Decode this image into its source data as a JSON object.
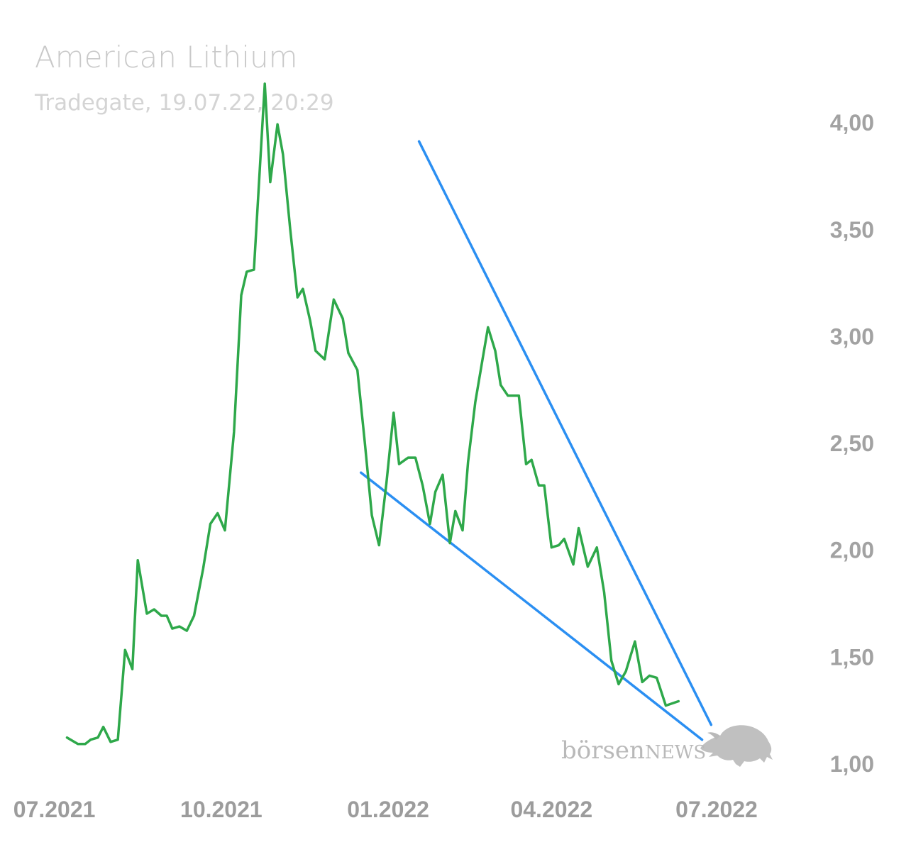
{
  "chart_data": {
    "type": "line",
    "title": "American Lithium",
    "subtitle": "Tradegate, 19.07.22, 20:29",
    "xlabel": "",
    "ylabel": "",
    "ylim": [
      0.9,
      4.19
    ],
    "xlim": [
      "2021-06-12",
      "2022-08-31"
    ],
    "yticks": [
      {
        "value": 4.0,
        "label": "4,00"
      },
      {
        "value": 3.5,
        "label": "3,50"
      },
      {
        "value": 3.0,
        "label": "3,00"
      },
      {
        "value": 2.5,
        "label": "2,50"
      },
      {
        "value": 2.0,
        "label": "2,00"
      },
      {
        "value": 1.5,
        "label": "1,50"
      },
      {
        "value": 1.0,
        "label": "1,00"
      }
    ],
    "xticks": [
      {
        "date": "2021-07-01",
        "label": "07.2021"
      },
      {
        "date": "2021-10-01",
        "label": "10.2021"
      },
      {
        "date": "2022-01-01",
        "label": "01.2022"
      },
      {
        "date": "2022-04-01",
        "label": "04.2022"
      },
      {
        "date": "2022-07-01",
        "label": "07.2022"
      }
    ],
    "grid": false,
    "series": [
      {
        "name": "",
        "color": "#2ea84a",
        "points": [
          [
            "2021-07-08",
            1.12
          ],
          [
            "2021-07-14",
            1.09
          ],
          [
            "2021-07-18",
            1.09
          ],
          [
            "2021-07-21",
            1.11
          ],
          [
            "2021-07-25",
            1.12
          ],
          [
            "2021-07-28",
            1.17
          ],
          [
            "2021-08-01",
            1.1
          ],
          [
            "2021-08-05",
            1.11
          ],
          [
            "2021-08-09",
            1.53
          ],
          [
            "2021-08-13",
            1.44
          ],
          [
            "2021-08-16",
            1.95
          ],
          [
            "2021-08-21",
            1.7
          ],
          [
            "2021-08-25",
            1.72
          ],
          [
            "2021-08-29",
            1.69
          ],
          [
            "2021-09-01",
            1.69
          ],
          [
            "2021-09-04",
            1.63
          ],
          [
            "2021-09-08",
            1.64
          ],
          [
            "2021-09-12",
            1.62
          ],
          [
            "2021-09-16",
            1.69
          ],
          [
            "2021-09-21",
            1.91
          ],
          [
            "2021-09-25",
            2.12
          ],
          [
            "2021-09-29",
            2.17
          ],
          [
            "2021-10-03",
            2.09
          ],
          [
            "2021-10-08",
            2.55
          ],
          [
            "2021-10-12",
            3.19
          ],
          [
            "2021-10-15",
            3.3
          ],
          [
            "2021-10-19",
            3.31
          ],
          [
            "2021-10-25",
            4.18
          ],
          [
            "2021-10-28",
            3.72
          ],
          [
            "2021-11-01",
            3.99
          ],
          [
            "2021-11-04",
            3.85
          ],
          [
            "2021-11-08",
            3.5
          ],
          [
            "2021-11-12",
            3.18
          ],
          [
            "2021-11-15",
            3.22
          ],
          [
            "2021-11-19",
            3.07
          ],
          [
            "2021-11-22",
            2.93
          ],
          [
            "2021-11-27",
            2.89
          ],
          [
            "2021-12-02",
            3.17
          ],
          [
            "2021-12-07",
            3.08
          ],
          [
            "2021-12-10",
            2.92
          ],
          [
            "2021-12-15",
            2.84
          ],
          [
            "2021-12-19",
            2.51
          ],
          [
            "2021-12-23",
            2.16
          ],
          [
            "2021-12-27",
            2.02
          ],
          [
            "2021-12-31",
            2.31
          ],
          [
            "2022-01-04",
            2.64
          ],
          [
            "2022-01-07",
            2.4
          ],
          [
            "2022-01-12",
            2.43
          ],
          [
            "2022-01-16",
            2.43
          ],
          [
            "2022-01-20",
            2.3
          ],
          [
            "2022-01-24",
            2.12
          ],
          [
            "2022-01-27",
            2.27
          ],
          [
            "2022-01-31",
            2.35
          ],
          [
            "2022-02-04",
            2.03
          ],
          [
            "2022-02-07",
            2.18
          ],
          [
            "2022-02-11",
            2.09
          ],
          [
            "2022-02-14",
            2.41
          ],
          [
            "2022-02-18",
            2.69
          ],
          [
            "2022-02-22",
            2.89
          ],
          [
            "2022-02-25",
            3.04
          ],
          [
            "2022-03-01",
            2.93
          ],
          [
            "2022-03-04",
            2.77
          ],
          [
            "2022-03-08",
            2.72
          ],
          [
            "2022-03-14",
            2.72
          ],
          [
            "2022-03-18",
            2.4
          ],
          [
            "2022-03-21",
            2.42
          ],
          [
            "2022-03-25",
            2.3
          ],
          [
            "2022-03-28",
            2.3
          ],
          [
            "2022-04-01",
            2.01
          ],
          [
            "2022-04-05",
            2.02
          ],
          [
            "2022-04-08",
            2.05
          ],
          [
            "2022-04-13",
            1.93
          ],
          [
            "2022-04-16",
            2.1
          ],
          [
            "2022-04-21",
            1.92
          ],
          [
            "2022-04-26",
            2.01
          ],
          [
            "2022-04-30",
            1.8
          ],
          [
            "2022-05-04",
            1.48
          ],
          [
            "2022-05-08",
            1.37
          ],
          [
            "2022-05-12",
            1.43
          ],
          [
            "2022-05-17",
            1.57
          ],
          [
            "2022-05-21",
            1.38
          ],
          [
            "2022-05-25",
            1.41
          ],
          [
            "2022-05-29",
            1.4
          ],
          [
            "2022-06-03",
            1.27
          ],
          [
            "2022-06-10",
            1.29
          ]
        ]
      }
    ],
    "trendlines": [
      {
        "color": "#2b8ff2",
        "start": [
          "2022-01-18",
          3.91
        ],
        "end": [
          "2022-06-28",
          1.18
        ]
      },
      {
        "color": "#2b8ff2",
        "start": [
          "2021-12-17",
          2.36
        ],
        "end": [
          "2022-06-23",
          1.11
        ]
      }
    ]
  },
  "watermark": {
    "text_a": "börsen",
    "text_b": "NEWS",
    "icon": "bull-icon",
    "color": "#b9b9b9"
  }
}
